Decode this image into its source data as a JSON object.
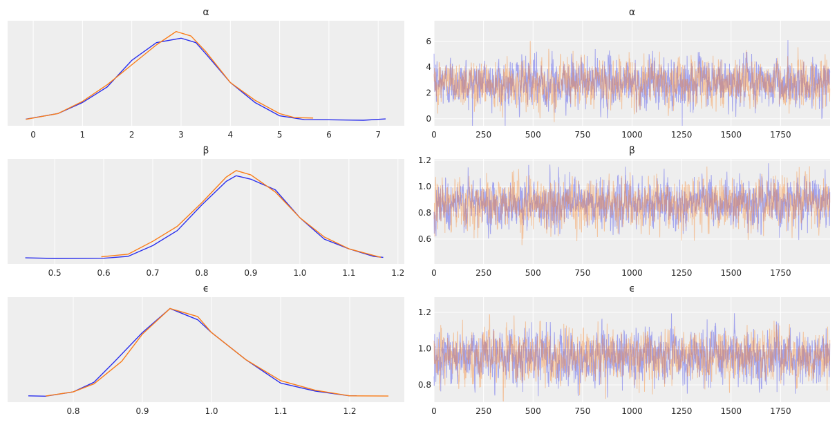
{
  "colors": {
    "chain_0": "#2a2eec",
    "chain_1": "#fa7c17",
    "panel_bg": "#eeeeee",
    "grid": "#ffffff"
  },
  "chart_data": [
    {
      "type": "line",
      "title": "α",
      "grid": true,
      "xlim": [
        -0.52,
        7.53
      ],
      "xticks": [
        "0",
        "1",
        "2",
        "3",
        "4",
        "5",
        "6",
        "7"
      ],
      "series": [
        {
          "x": [
            -0.15,
            0.5,
            1,
            1.5,
            2,
            2.5,
            3,
            3.3,
            3.5,
            4,
            4.5,
            5,
            5.5,
            6,
            6.7,
            7.15
          ],
          "y": [
            0.005,
            0.03,
            0.08,
            0.15,
            0.27,
            0.35,
            0.37,
            0.35,
            0.3,
            0.17,
            0.08,
            0.02,
            0.003,
            0.002,
            0.0,
            0.006
          ]
        },
        {
          "x": [
            -0.15,
            0.5,
            1,
            1.5,
            2,
            2.5,
            2.9,
            3.2,
            3.5,
            4,
            4.5,
            5,
            5.3,
            5.68
          ],
          "y": [
            0.004,
            0.03,
            0.085,
            0.16,
            0.25,
            0.34,
            0.4,
            0.38,
            0.31,
            0.17,
            0.09,
            0.03,
            0.012,
            0.01
          ]
        }
      ]
    },
    {
      "type": "line",
      "title": "α",
      "grid": true,
      "xlim": [
        0,
        2000
      ],
      "ylim": [
        -0.54,
        7.6
      ],
      "xticks": [
        "0",
        "250",
        "500",
        "750",
        "1000",
        "1250",
        "1500",
        "1750"
      ],
      "yticks": [
        "0",
        "2",
        "4",
        "6"
      ],
      "draws": 2000,
      "chains": 2
    },
    {
      "type": "line",
      "title": "β",
      "grid": true,
      "xlim": [
        0.404,
        1.213
      ],
      "xticks": [
        "0.5",
        "0.6",
        "0.7",
        "0.8",
        "0.9",
        "1.0",
        "1.1",
        "1.2"
      ],
      "series": [
        {
          "x": [
            0.44,
            0.5,
            0.6,
            0.65,
            0.7,
            0.75,
            0.8,
            0.85,
            0.87,
            0.9,
            0.95,
            1.0,
            1.05,
            1.1,
            1.15,
            1.17
          ],
          "y": [
            0.03,
            0.0,
            0.01,
            0.1,
            0.6,
            1.3,
            2.5,
            3.6,
            3.86,
            3.7,
            3.2,
            1.9,
            0.9,
            0.45,
            0.1,
            0.05
          ]
        },
        {
          "x": [
            0.595,
            0.65,
            0.7,
            0.75,
            0.8,
            0.85,
            0.87,
            0.9,
            0.95,
            1.0,
            1.05,
            1.1,
            1.165
          ],
          "y": [
            0.08,
            0.2,
            0.8,
            1.5,
            2.6,
            3.8,
            4.1,
            3.9,
            3.1,
            1.9,
            1.0,
            0.45,
            0.05
          ]
        }
      ]
    },
    {
      "type": "line",
      "title": "β",
      "grid": true,
      "xlim": [
        0,
        2000
      ],
      "ylim": [
        0.41,
        1.21
      ],
      "xticks": [
        "0",
        "250",
        "500",
        "750",
        "1000",
        "1250",
        "1500",
        "1750"
      ],
      "yticks": [
        "0.6",
        "0.8",
        "1.0",
        "1.2"
      ],
      "draws": 2000,
      "chains": 2
    },
    {
      "type": "line",
      "title": "ϵ",
      "grid": true,
      "xlim": [
        0.705,
        1.279
      ],
      "xticks": [
        "0.8",
        "0.9",
        "1.0",
        "1.1",
        "1.2"
      ],
      "series": [
        {
          "x": [
            0.735,
            0.76,
            0.8,
            0.83,
            0.86,
            0.9,
            0.94,
            0.98,
            1.0,
            1.05,
            1.1,
            1.15,
            1.2,
            1.21
          ],
          "y": [
            0.05,
            0.03,
            0.3,
            0.9,
            2.2,
            4.0,
            5.5,
            4.8,
            4.0,
            2.3,
            0.85,
            0.35,
            0.05,
            0.05
          ]
        },
        {
          "x": [
            0.76,
            0.8,
            0.83,
            0.87,
            0.9,
            0.94,
            0.98,
            1.0,
            1.05,
            1.1,
            1.15,
            1.2,
            1.256
          ],
          "y": [
            0.04,
            0.3,
            0.8,
            2.2,
            3.9,
            5.5,
            5.0,
            4.0,
            2.3,
            1.0,
            0.4,
            0.05,
            0.04
          ]
        }
      ]
    },
    {
      "type": "line",
      "title": "ϵ",
      "grid": true,
      "xlim": [
        0,
        2000
      ],
      "ylim": [
        0.705,
        1.284
      ],
      "xticks": [
        "0",
        "250",
        "500",
        "750",
        "1000",
        "1250",
        "1500",
        "1750"
      ],
      "yticks": [
        "0.8",
        "1.0",
        "1.2"
      ],
      "draws": 2000,
      "chains": 2
    }
  ]
}
